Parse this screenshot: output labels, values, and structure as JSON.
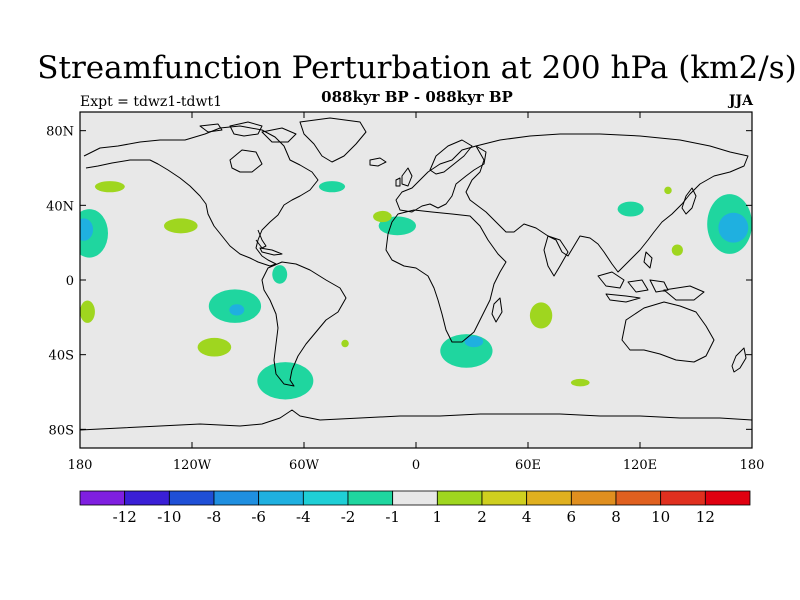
{
  "header": {
    "title": "Streamfunction Perturbation at 200 hPa (km2/s)",
    "subtitle": "088kyr BP - 088kyr BP",
    "left_label": "Expt = tdwz1-tdwt1",
    "right_label": "JJA"
  },
  "map": {
    "background_color": "#e8e8e8",
    "lon_range": [
      -180,
      180
    ],
    "lat_range": [
      -90,
      90
    ],
    "lon_ticks": [
      "180",
      "120W",
      "60W",
      "0",
      "60E",
      "120E",
      "180"
    ],
    "lat_ticks": [
      "80N",
      "40N",
      "0",
      "40S",
      "80S"
    ],
    "anomalies": [
      {
        "lon": -164,
        "lat": 50,
        "rx": 8,
        "ry": 3,
        "level": 2
      },
      {
        "lon": -175,
        "lat": 25,
        "rx": 10,
        "ry": 13,
        "level": -2
      },
      {
        "lon": -178,
        "lat": 27,
        "rx": 5,
        "ry": 6,
        "level": -4
      },
      {
        "lon": -126,
        "lat": 29,
        "rx": 9,
        "ry": 4,
        "level": 2
      },
      {
        "lon": -45,
        "lat": 50,
        "rx": 7,
        "ry": 3,
        "level": -2
      },
      {
        "lon": -10,
        "lat": 29,
        "rx": 10,
        "ry": 5,
        "level": -2
      },
      {
        "lon": -18,
        "lat": 34,
        "rx": 5,
        "ry": 3,
        "level": 2
      },
      {
        "lon": -97,
        "lat": -14,
        "rx": 14,
        "ry": 9,
        "level": -2
      },
      {
        "lon": -96,
        "lat": -16,
        "rx": 4,
        "ry": 3,
        "level": -4
      },
      {
        "lon": -73,
        "lat": 3,
        "rx": 4,
        "ry": 5,
        "level": -2
      },
      {
        "lon": -176,
        "lat": -17,
        "rx": 4,
        "ry": 6,
        "level": 2
      },
      {
        "lon": -108,
        "lat": -36,
        "rx": 9,
        "ry": 5,
        "level": 2
      },
      {
        "lon": -70,
        "lat": -54,
        "rx": 15,
        "ry": 10,
        "level": -2
      },
      {
        "lon": 27,
        "lat": -38,
        "rx": 14,
        "ry": 9,
        "level": -2
      },
      {
        "lon": 31,
        "lat": -33,
        "rx": 5,
        "ry": 3,
        "level": -4
      },
      {
        "lon": 67,
        "lat": -19,
        "rx": 6,
        "ry": 7,
        "level": 2
      },
      {
        "lon": 88,
        "lat": -55,
        "rx": 5,
        "ry": 2,
        "level": 2
      },
      {
        "lon": 115,
        "lat": 38,
        "rx": 7,
        "ry": 4,
        "level": -2
      },
      {
        "lon": 140,
        "lat": 16,
        "rx": 3,
        "ry": 3,
        "level": 2
      },
      {
        "lon": 135,
        "lat": 48,
        "rx": 2,
        "ry": 2,
        "level": 2
      },
      {
        "lon": 168,
        "lat": 30,
        "rx": 12,
        "ry": 16,
        "level": -2
      },
      {
        "lon": 170,
        "lat": 28,
        "rx": 8,
        "ry": 8,
        "level": -4
      },
      {
        "lon": -38,
        "lat": -34,
        "rx": 2,
        "ry": 2,
        "level": 2
      }
    ]
  },
  "colorbar": {
    "colors": [
      "#7f1fe0",
      "#3a1fd6",
      "#1f4fd6",
      "#1f8fe0",
      "#1fb0e0",
      "#1fcfd6",
      "#1fd69f",
      "#e8e8e8",
      "#9fd61f",
      "#cfcf1f",
      "#e0b01f",
      "#e08f1f",
      "#e0601f",
      "#e0301f",
      "#e00010"
    ],
    "labels": [
      "-12",
      "-10",
      "-8",
      "-6",
      "-4",
      "-2",
      "-1",
      "1",
      "2",
      "4",
      "6",
      "8",
      "10",
      "12"
    ]
  },
  "chart_data": {
    "type": "heatmap",
    "title": "Streamfunction Perturbation at 200 hPa (km2/s)",
    "subtitle": "088kyr BP - 088kyr BP",
    "season": "JJA",
    "experiment": "Expt = tdwz1-tdwt1",
    "x_ticks": [
      "180",
      "120W",
      "60W",
      "0",
      "60E",
      "120E",
      "180"
    ],
    "y_ticks": [
      "80N",
      "40N",
      "0",
      "40S",
      "80S"
    ],
    "xlim": [
      -180,
      180
    ],
    "ylim": [
      -90,
      90
    ],
    "levels": [
      -12,
      -10,
      -8,
      -6,
      -4,
      -2,
      -1,
      1,
      2,
      4,
      6,
      8,
      10,
      12
    ]
  }
}
